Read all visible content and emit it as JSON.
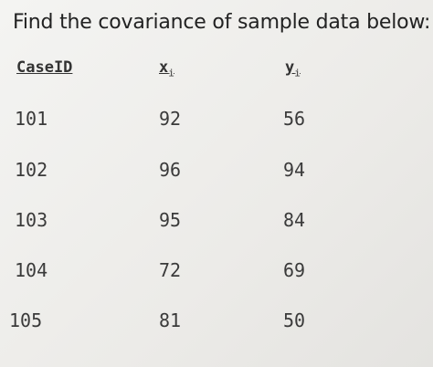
{
  "title": "Find the covariance of sample data below:",
  "table": {
    "headers": [
      "CaseID",
      {
        "base": "x",
        "sub": "i"
      },
      {
        "base": "y",
        "sub": "i"
      }
    ],
    "rows": [
      [
        101,
        92,
        56
      ],
      [
        102,
        96,
        94
      ],
      [
        103,
        95,
        84
      ],
      [
        104,
        72,
        69
      ],
      [
        105,
        81,
        50
      ]
    ]
  }
}
